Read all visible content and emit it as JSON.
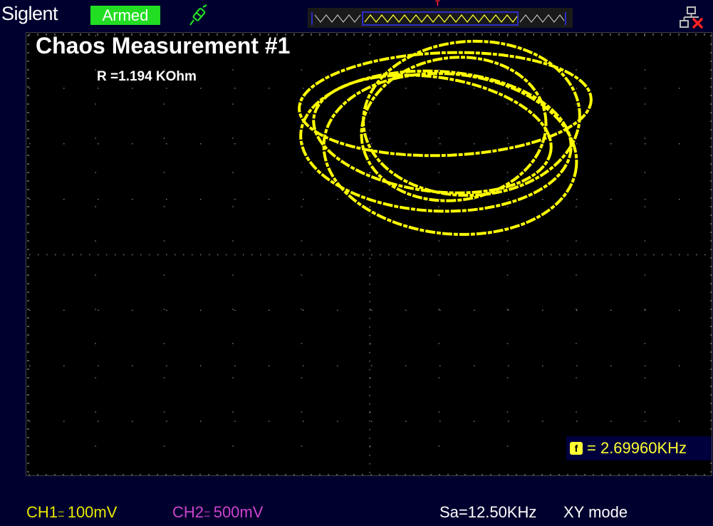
{
  "header": {
    "brand": "Siglent",
    "status": "Armed",
    "trigger_marker": "T"
  },
  "screen": {
    "title": "Chaos Measurement #1",
    "resistance": "R =1.194  KOhm",
    "frequency_icon": "f",
    "frequency": "= 2.69960KHz"
  },
  "footer": {
    "ch1_label": "CH1",
    "ch1_scale": "100mV",
    "ch2_label": "CH2",
    "ch2_scale": "500mV",
    "sample_rate": "Sa=12.50KHz",
    "mode": "XY mode"
  },
  "colors": {
    "trace": "#ffff00",
    "ch1": "#e8e800",
    "ch2": "#cc44cc",
    "armed": "#22dd22"
  },
  "icons": {
    "probe": "probe-icon",
    "network": "network-disconnected-icon"
  }
}
